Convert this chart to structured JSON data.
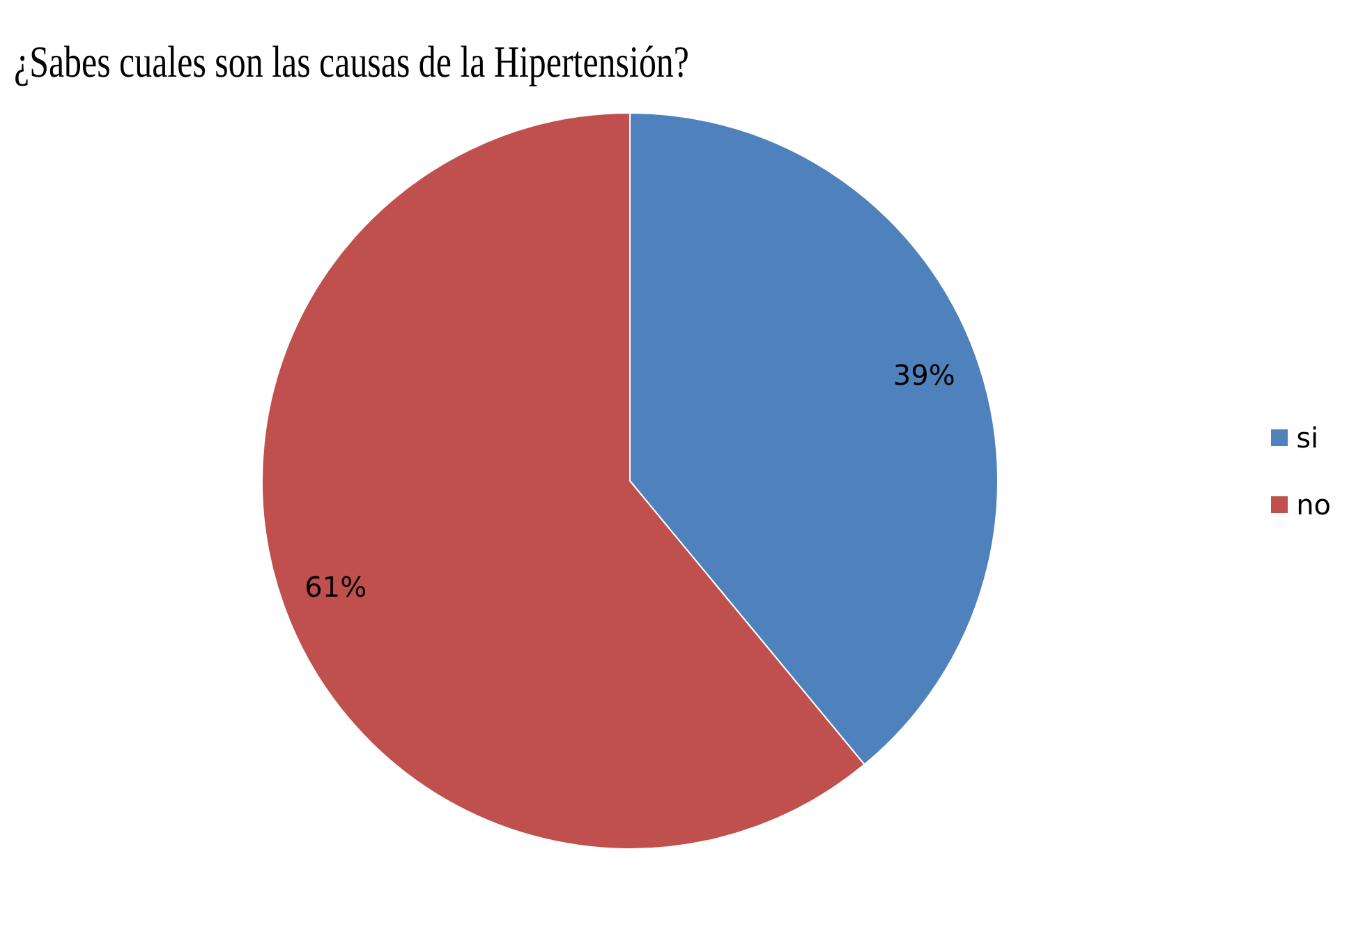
{
  "chart_data": {
    "type": "pie",
    "title": "¿Sabes cuales son las causas de la Hipertensión?",
    "categories": [
      "si",
      "no"
    ],
    "values": [
      39,
      61
    ],
    "colors": [
      "#4f81bd",
      "#c0504d"
    ],
    "value_labels": [
      "39%",
      "61%"
    ],
    "legend": "right"
  }
}
